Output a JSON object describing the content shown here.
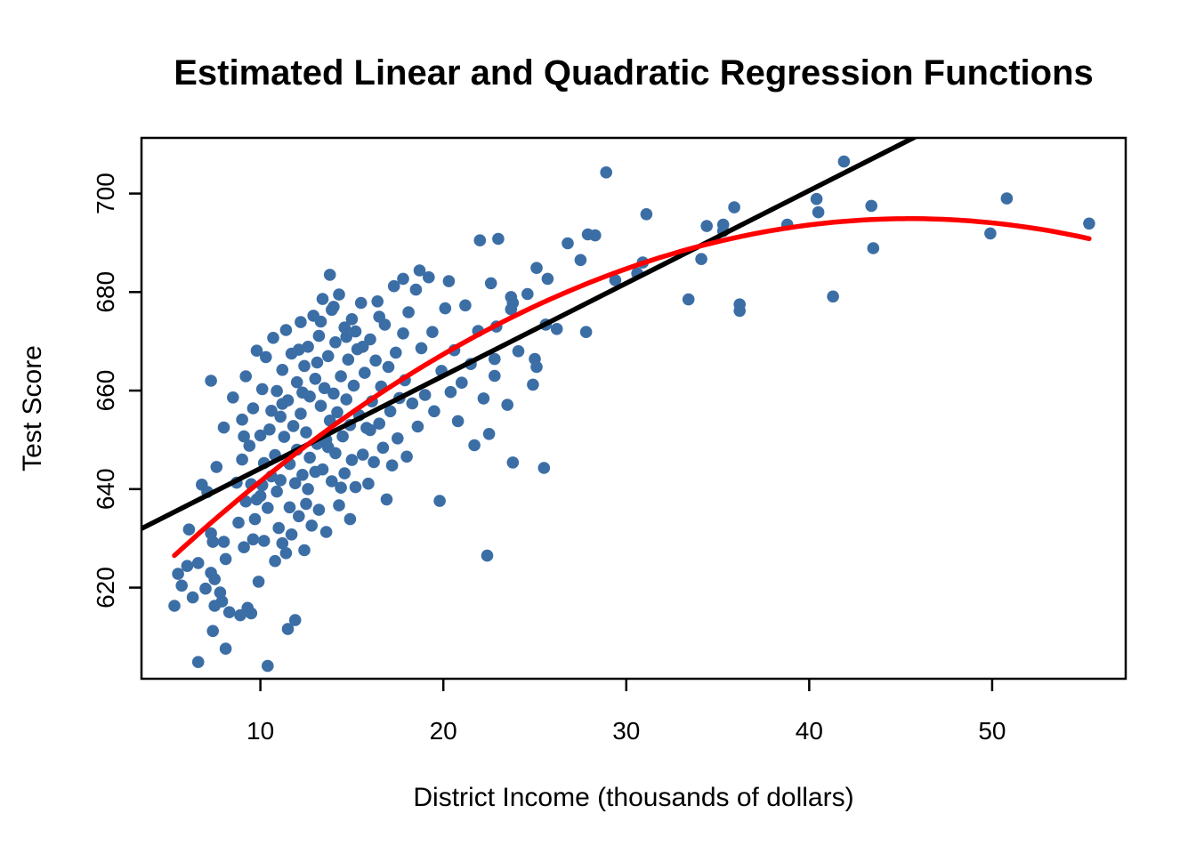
{
  "chart_data": {
    "type": "scatter",
    "title": "Estimated Linear and Quadratic Regression Functions",
    "xlabel": "District Income (thousands of dollars)",
    "ylabel": "Test Score",
    "x_ticks": [
      10,
      20,
      30,
      40,
      50
    ],
    "y_ticks": [
      620,
      640,
      660,
      680,
      700
    ],
    "xlim": [
      3.5,
      57.3
    ],
    "ylim": [
      601.5,
      711.3
    ],
    "grid": false,
    "legend": "none",
    "point_color": "#3C6EA6",
    "point_radius": 6.8,
    "box_color": "#000000",
    "series": [
      {
        "name": "district-observations",
        "kind": "points",
        "points": [
          [
            5.3,
            616.3
          ],
          [
            5.5,
            622.8
          ],
          [
            5.7,
            620.4
          ],
          [
            6.0,
            624.4
          ],
          [
            6.1,
            631.8
          ],
          [
            6.3,
            618.0
          ],
          [
            6.6,
            604.9
          ],
          [
            6.6,
            625.0
          ],
          [
            6.8,
            640.9
          ],
          [
            7.0,
            619.8
          ],
          [
            7.1,
            639.4
          ],
          [
            7.3,
            662.0
          ],
          [
            7.3,
            631.0
          ],
          [
            7.3,
            623.0
          ],
          [
            7.4,
            629.3
          ],
          [
            7.4,
            611.2
          ],
          [
            7.5,
            621.7
          ],
          [
            7.5,
            616.3
          ],
          [
            7.6,
            644.5
          ],
          [
            7.8,
            619.0
          ],
          [
            7.9,
            617.2
          ],
          [
            8.0,
            629.3
          ],
          [
            8.0,
            652.5
          ],
          [
            8.1,
            625.8
          ],
          [
            8.1,
            607.6
          ],
          [
            8.3,
            615.0
          ],
          [
            8.5,
            658.6
          ],
          [
            8.7,
            641.3
          ],
          [
            8.8,
            633.2
          ],
          [
            8.9,
            614.4
          ],
          [
            9.0,
            654.1
          ],
          [
            9.0,
            646.0
          ],
          [
            9.1,
            628.2
          ],
          [
            9.2,
            637.5
          ],
          [
            9.2,
            662.9
          ],
          [
            9.3,
            615.9
          ],
          [
            9.4,
            648.8
          ],
          [
            9.5,
            614.8
          ],
          [
            9.5,
            641.0
          ],
          [
            9.6,
            656.4
          ],
          [
            9.7,
            633.9
          ],
          [
            9.8,
            668.1
          ],
          [
            9.8,
            637.9
          ],
          [
            9.9,
            621.2
          ],
          [
            10.0,
            650.9
          ],
          [
            10.0,
            638.6
          ],
          [
            10.1,
            660.3
          ],
          [
            10.2,
            629.5
          ],
          [
            10.2,
            645.3
          ],
          [
            10.3,
            666.8
          ],
          [
            10.4,
            604.1
          ],
          [
            10.4,
            636.2
          ],
          [
            10.5,
            652.1
          ],
          [
            10.6,
            642.6
          ],
          [
            10.7,
            670.7
          ],
          [
            10.8,
            625.4
          ],
          [
            10.9,
            639.5
          ],
          [
            10.9,
            659.9
          ],
          [
            11.0,
            632.1
          ],
          [
            11.1,
            654.7
          ],
          [
            11.1,
            641.8
          ],
          [
            11.2,
            664.2
          ],
          [
            11.2,
            629.0
          ],
          [
            11.3,
            650.6
          ],
          [
            11.4,
            672.3
          ],
          [
            11.4,
            627.0
          ],
          [
            11.5,
            611.6
          ],
          [
            11.5,
            658.0
          ],
          [
            11.6,
            645.1
          ],
          [
            11.7,
            667.5
          ],
          [
            11.7,
            630.8
          ],
          [
            11.8,
            652.8
          ],
          [
            11.9,
            641.2
          ],
          [
            11.9,
            613.4
          ],
          [
            12.0,
            661.7
          ],
          [
            12.0,
            648.0
          ],
          [
            12.1,
            634.5
          ],
          [
            12.2,
            673.9
          ],
          [
            12.2,
            655.3
          ],
          [
            12.3,
            642.9
          ],
          [
            12.4,
            665.0
          ],
          [
            12.4,
            627.6
          ],
          [
            12.5,
            651.5
          ],
          [
            12.5,
            637.0
          ],
          [
            12.6,
            668.9
          ],
          [
            12.7,
            646.4
          ],
          [
            12.7,
            658.8
          ],
          [
            12.8,
            632.6
          ],
          [
            12.9,
            675.2
          ],
          [
            13.0,
            643.5
          ],
          [
            13.0,
            662.4
          ],
          [
            13.1,
            649.2
          ],
          [
            13.2,
            671.1
          ],
          [
            13.2,
            635.8
          ],
          [
            13.3,
            656.9
          ],
          [
            13.4,
            644.0
          ],
          [
            13.4,
            678.6
          ],
          [
            13.5,
            660.5
          ],
          [
            13.6,
            650.0
          ],
          [
            13.6,
            631.3
          ],
          [
            13.7,
            667.0
          ],
          [
            13.8,
            683.5
          ],
          [
            13.8,
            653.9
          ],
          [
            13.9,
            676.4
          ],
          [
            13.9,
            641.6
          ],
          [
            14.0,
            659.4
          ],
          [
            14.1,
            647.3
          ],
          [
            14.1,
            669.8
          ],
          [
            14.2,
            655.6
          ],
          [
            14.3,
            636.7
          ],
          [
            14.3,
            679.5
          ],
          [
            14.4,
            662.9
          ],
          [
            14.5,
            650.7
          ],
          [
            14.6,
            672.8
          ],
          [
            14.6,
            643.2
          ],
          [
            14.7,
            658.2
          ],
          [
            14.8,
            666.3
          ],
          [
            14.9,
            633.9
          ],
          [
            14.9,
            653.0
          ],
          [
            15.0,
            674.5
          ],
          [
            15.0,
            645.9
          ],
          [
            15.1,
            661.0
          ],
          [
            15.2,
            640.4
          ],
          [
            15.3,
            668.4
          ],
          [
            15.4,
            655.0
          ],
          [
            15.5,
            677.8
          ],
          [
            15.6,
            647.0
          ],
          [
            15.7,
            663.6
          ],
          [
            15.8,
            652.4
          ],
          [
            15.9,
            641.1
          ],
          [
            16.0,
            670.4
          ],
          [
            16.1,
            657.8
          ],
          [
            16.2,
            645.5
          ],
          [
            16.3,
            666.1
          ],
          [
            16.4,
            678.1
          ],
          [
            16.5,
            653.3
          ],
          [
            16.6,
            660.8
          ],
          [
            16.7,
            648.4
          ],
          [
            16.8,
            673.4
          ],
          [
            16.9,
            637.9
          ],
          [
            17.0,
            664.8
          ],
          [
            17.1,
            655.8
          ],
          [
            17.2,
            644.8
          ],
          [
            17.3,
            681.2
          ],
          [
            17.4,
            667.7
          ],
          [
            17.5,
            650.3
          ],
          [
            17.6,
            658.5
          ],
          [
            17.8,
            671.6
          ],
          [
            17.8,
            682.7
          ],
          [
            17.9,
            662.1
          ],
          [
            18.0,
            646.6
          ],
          [
            18.1,
            675.9
          ],
          [
            18.3,
            657.4
          ],
          [
            18.5,
            680.5
          ],
          [
            18.6,
            652.7
          ],
          [
            18.7,
            684.4
          ],
          [
            18.8,
            668.6
          ],
          [
            19.0,
            659.1
          ],
          [
            19.2,
            683.0
          ],
          [
            19.4,
            671.9
          ],
          [
            19.5,
            655.8
          ],
          [
            19.8,
            637.6
          ],
          [
            19.9,
            664.0
          ],
          [
            20.1,
            676.7
          ],
          [
            20.3,
            682.2
          ],
          [
            20.4,
            659.7
          ],
          [
            20.6,
            668.2
          ],
          [
            20.8,
            653.8
          ],
          [
            21.0,
            661.6
          ],
          [
            21.2,
            677.3
          ],
          [
            21.5,
            665.4
          ],
          [
            21.7,
            648.9
          ],
          [
            21.9,
            672.1
          ],
          [
            22.0,
            690.5
          ],
          [
            22.2,
            658.4
          ],
          [
            22.4,
            626.5
          ],
          [
            22.5,
            651.2
          ],
          [
            22.6,
            681.8
          ],
          [
            22.8,
            666.4
          ],
          [
            22.8,
            663.0
          ],
          [
            22.9,
            673.0
          ],
          [
            23.0,
            690.8
          ],
          [
            23.5,
            657.1
          ],
          [
            23.7,
            679.0
          ],
          [
            23.7,
            676.5
          ],
          [
            23.8,
            677.8
          ],
          [
            23.8,
            645.4
          ],
          [
            24.1,
            668.0
          ],
          [
            24.6,
            679.6
          ],
          [
            24.9,
            661.2
          ],
          [
            25.0,
            666.4
          ],
          [
            25.1,
            684.9
          ],
          [
            25.1,
            664.8
          ],
          [
            25.6,
            673.4
          ],
          [
            25.7,
            682.7
          ],
          [
            25.5,
            644.3
          ],
          [
            26.2,
            672.5
          ],
          [
            26.8,
            689.9
          ],
          [
            27.5,
            686.5
          ],
          [
            27.8,
            671.9
          ],
          [
            27.9,
            691.7
          ],
          [
            28.3,
            691.5
          ],
          [
            28.9,
            704.3
          ],
          [
            29.4,
            682.4
          ],
          [
            30.6,
            683.8
          ],
          [
            30.9,
            686.0
          ],
          [
            31.1,
            695.8
          ],
          [
            33.4,
            678.5
          ],
          [
            34.1,
            686.7
          ],
          [
            34.4,
            693.4
          ],
          [
            35.3,
            693.7
          ],
          [
            35.3,
            692.4
          ],
          [
            35.9,
            697.2
          ],
          [
            36.2,
            677.5
          ],
          [
            36.2,
            676.2
          ],
          [
            38.8,
            693.7
          ],
          [
            40.4,
            698.9
          ],
          [
            40.5,
            696.2
          ],
          [
            41.3,
            679.1
          ],
          [
            41.9,
            706.5
          ],
          [
            43.4,
            697.5
          ],
          [
            43.5,
            688.9
          ],
          [
            49.9,
            691.9
          ],
          [
            50.8,
            699.0
          ],
          [
            55.3,
            693.9
          ],
          [
            9.1,
            650.7
          ],
          [
            9.6,
            629.8
          ],
          [
            10.1,
            640.8
          ],
          [
            10.6,
            655.9
          ],
          [
            10.8,
            646.9
          ],
          [
            11.2,
            657.3
          ],
          [
            11.6,
            636.3
          ],
          [
            12.1,
            668.3
          ],
          [
            12.3,
            659.6
          ],
          [
            12.6,
            640.0
          ],
          [
            13.1,
            665.7
          ],
          [
            13.3,
            674.0
          ],
          [
            13.7,
            648.5
          ],
          [
            14.0,
            677.0
          ],
          [
            14.4,
            640.3
          ],
          [
            14.7,
            670.9
          ],
          [
            15.2,
            672.0
          ],
          [
            15.6,
            668.9
          ],
          [
            16.0,
            652.0
          ],
          [
            16.5,
            675.0
          ]
        ]
      },
      {
        "name": "linear-fit",
        "kind": "line",
        "color": "#000000",
        "equation": "testscore = 625.4 + 1.88 x income",
        "intercept": 625.4,
        "slope": 1.88,
        "width": 5.5
      },
      {
        "name": "quadratic-fit",
        "kind": "curve",
        "color": "#FF0000",
        "equation": "testscore = 607.3 + 3.85 x income - 0.0423 x income^2",
        "b0": 607.3,
        "b1": 3.85,
        "b2": -0.0423,
        "x_range": [
          5.3,
          55.3
        ],
        "width": 5.5
      }
    ]
  }
}
